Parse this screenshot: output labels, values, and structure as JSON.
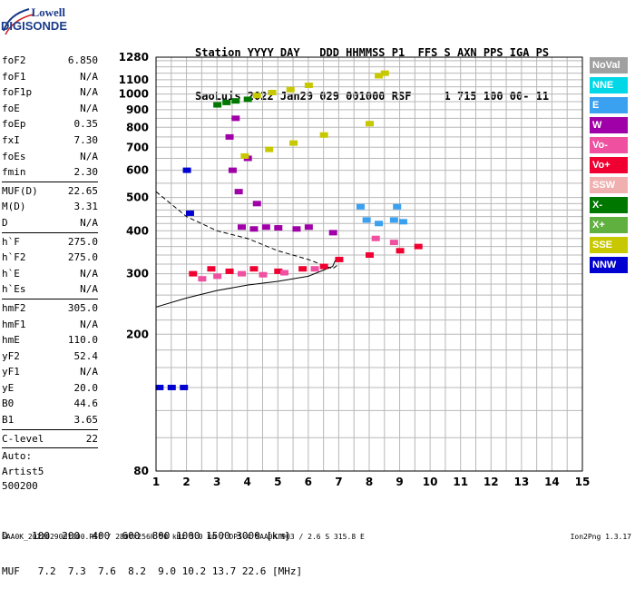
{
  "logo": {
    "top": "Lowell",
    "bottom": "DIGISONDE"
  },
  "header": {
    "line1": "Station YYYY DAY   DDD HHMMSS P1  FFS S AXN PPS IGA PS",
    "line2": "SaoLuis 2022 Jan29 029 001000 RSF     1 715 100 00- 11"
  },
  "params": {
    "group1": [
      {
        "k": "foF2",
        "v": "6.850"
      },
      {
        "k": "foF1",
        "v": "N/A"
      },
      {
        "k": "foF1p",
        "v": "N/A"
      },
      {
        "k": "foE",
        "v": "N/A"
      },
      {
        "k": "foEp",
        "v": "0.35"
      },
      {
        "k": "fxI",
        "v": "7.30"
      },
      {
        "k": "foEs",
        "v": "N/A"
      },
      {
        "k": "fmin",
        "v": "2.30"
      }
    ],
    "group2": [
      {
        "k": "MUF(D)",
        "v": "22.65"
      },
      {
        "k": "M(D)",
        "v": "3.31"
      },
      {
        "k": "D",
        "v": "N/A"
      }
    ],
    "group3": [
      {
        "k": "h`F",
        "v": "275.0"
      },
      {
        "k": "h`F2",
        "v": "275.0"
      },
      {
        "k": "h`E",
        "v": "N/A"
      },
      {
        "k": "h`Es",
        "v": "N/A"
      }
    ],
    "group4": [
      {
        "k": "hmF2",
        "v": "305.0"
      },
      {
        "k": "hmF1",
        "v": "N/A"
      },
      {
        "k": "hmE",
        "v": "110.0"
      },
      {
        "k": "yF2",
        "v": "52.4"
      },
      {
        "k": "yF1",
        "v": "N/A"
      },
      {
        "k": "yE",
        "v": "20.0"
      },
      {
        "k": "B0",
        "v": "44.6"
      },
      {
        "k": "B1",
        "v": "3.65"
      }
    ],
    "group5": [
      {
        "k": "C-level",
        "v": "22"
      }
    ],
    "auto": [
      "Auto:",
      "Artist5",
      "500200"
    ]
  },
  "legend": [
    {
      "label": "NoVal",
      "color": "#a0a0a0"
    },
    {
      "label": "NNE",
      "color": "#00d8e8"
    },
    {
      "label": "E",
      "color": "#3aa0f0"
    },
    {
      "label": "W",
      "color": "#a000a8"
    },
    {
      "label": "Vo-",
      "color": "#f050a0"
    },
    {
      "label": "Vo+",
      "color": "#f00030"
    },
    {
      "label": "SSW",
      "color": "#f0b0b0"
    },
    {
      "label": "X-",
      "color": "#007800"
    },
    {
      "label": "X+",
      "color": "#60b040"
    },
    {
      "label": "SSE",
      "color": "#c8c800"
    },
    {
      "label": "NNW",
      "color": "#0000d0"
    }
  ],
  "footer": {
    "line1": "D    100  200  400  600  800 1000 1500 3000 [km]",
    "line2": "MUF   7.2  7.3  7.6  8.2  9.0 10.2 13.7 22.6 [MHz]"
  },
  "bottom": "SAA0K_2022029001000.RSF / 280fx256h 50 kHz 5.0 km / DPS-4 SAA0K 903 / 2.6 S 315.8 E",
  "version": "Ion2Png 1.3.17",
  "chart_data": {
    "type": "scatter",
    "title": "",
    "xlabel": "",
    "ylabel": "",
    "xlim": [
      1,
      15
    ],
    "ylim": [
      80,
      1280
    ],
    "xticks": [
      "1",
      "2",
      "3",
      "4",
      "5",
      "6",
      "7",
      "8",
      "9",
      "10",
      "11",
      "12",
      "13",
      "14",
      "15"
    ],
    "yticks": [
      "80",
      "200",
      "300",
      "400",
      "500",
      "600",
      "700",
      "800",
      "900",
      "1000",
      "1100",
      "1280"
    ],
    "ylog": true,
    "grid": true,
    "series": [
      {
        "color": "#a000a8",
        "points": [
          [
            3.8,
            410
          ],
          [
            4.2,
            405
          ],
          [
            4.6,
            410
          ],
          [
            5.0,
            408
          ],
          [
            5.6,
            405
          ],
          [
            6.0,
            410
          ],
          [
            6.8,
            395
          ],
          [
            3.5,
            600
          ],
          [
            4.0,
            650
          ],
          [
            3.7,
            520
          ],
          [
            4.3,
            480
          ],
          [
            3.4,
            750
          ],
          [
            3.6,
            850
          ]
        ]
      },
      {
        "color": "#f00030",
        "points": [
          [
            2.2,
            300
          ],
          [
            2.8,
            310
          ],
          [
            3.4,
            305
          ],
          [
            4.2,
            310
          ],
          [
            5.0,
            305
          ],
          [
            5.8,
            310
          ],
          [
            6.5,
            315
          ],
          [
            7.0,
            330
          ],
          [
            8.0,
            340
          ],
          [
            9.0,
            350
          ],
          [
            9.6,
            360
          ]
        ]
      },
      {
        "color": "#f050a0",
        "points": [
          [
            2.5,
            290
          ],
          [
            3.0,
            295
          ],
          [
            3.8,
            300
          ],
          [
            4.5,
            298
          ],
          [
            5.2,
            302
          ],
          [
            6.2,
            310
          ],
          [
            8.2,
            380
          ],
          [
            8.8,
            370
          ]
        ]
      },
      {
        "color": "#3aa0f0",
        "points": [
          [
            7.9,
            430
          ],
          [
            8.3,
            420
          ],
          [
            8.8,
            430
          ],
          [
            9.1,
            425
          ],
          [
            7.7,
            470
          ],
          [
            8.9,
            470
          ]
        ]
      },
      {
        "color": "#007800",
        "points": [
          [
            3.0,
            930
          ],
          [
            3.3,
            945
          ],
          [
            3.6,
            955
          ],
          [
            4.0,
            965
          ]
        ]
      },
      {
        "color": "#c8c800",
        "points": [
          [
            4.3,
            990
          ],
          [
            4.8,
            1010
          ],
          [
            5.4,
            1030
          ],
          [
            6.0,
            1060
          ],
          [
            3.9,
            660
          ],
          [
            4.7,
            690
          ],
          [
            5.5,
            720
          ],
          [
            6.5,
            760
          ],
          [
            8.0,
            820
          ],
          [
            8.3,
            1130
          ],
          [
            8.5,
            1150
          ]
        ]
      },
      {
        "color": "#0000d0",
        "points": [
          [
            1.1,
            140
          ],
          [
            1.5,
            140
          ],
          [
            1.9,
            140
          ],
          [
            2.0,
            600
          ],
          [
            2.1,
            450
          ]
        ]
      }
    ]
  }
}
